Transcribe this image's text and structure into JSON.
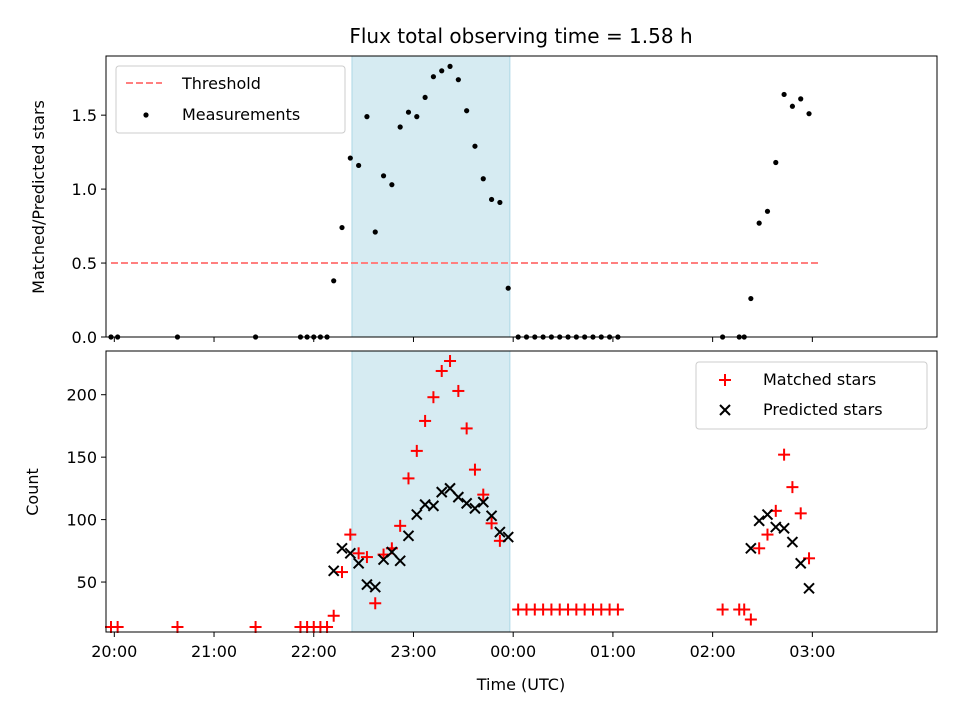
{
  "chart_data": [
    {
      "type": "scatter",
      "title": "Flux total observing time = 1.58 h",
      "xlabel": "",
      "ylabel": "Matched/Predicted stars",
      "xlim": [
        "19:55",
        "04:15"
      ],
      "ylim": [
        0,
        1.9
      ],
      "yticks": [
        "0.0",
        "0.5",
        "1.0",
        "1.5"
      ],
      "shaded_region": {
        "x_start": "22:23",
        "x_end": "23:58",
        "color": "#add8e6"
      },
      "legend": {
        "placement": "upper-left",
        "entries": [
          "Threshold",
          "Measurements"
        ]
      },
      "series": [
        {
          "name": "Threshold",
          "kind": "dashed-line",
          "color": "#ff7f7f",
          "points": [
            [
              "19:58",
              0.5
            ],
            [
              "03:04",
              0.5
            ]
          ]
        },
        {
          "name": "Measurements",
          "kind": "points",
          "color": "#000000",
          "points": [
            [
              "19:58",
              0
            ],
            [
              "20:02",
              0
            ],
            [
              "20:38",
              0
            ],
            [
              "21:25",
              0
            ],
            [
              "21:52",
              0
            ],
            [
              "21:56",
              0
            ],
            [
              "22:00",
              0
            ],
            [
              "22:04",
              0
            ],
            [
              "22:08",
              0
            ],
            [
              "22:12",
              0.38
            ],
            [
              "22:17",
              0.74
            ],
            [
              "22:22",
              1.21
            ],
            [
              "22:27",
              1.16
            ],
            [
              "22:32",
              1.49
            ],
            [
              "22:37",
              0.71
            ],
            [
              "22:42",
              1.09
            ],
            [
              "22:47",
              1.03
            ],
            [
              "22:52",
              1.42
            ],
            [
              "22:57",
              1.52
            ],
            [
              "23:02",
              1.49
            ],
            [
              "23:07",
              1.62
            ],
            [
              "23:12",
              1.76
            ],
            [
              "23:17",
              1.8
            ],
            [
              "23:22",
              1.83
            ],
            [
              "23:27",
              1.74
            ],
            [
              "23:32",
              1.53
            ],
            [
              "23:37",
              1.29
            ],
            [
              "23:42",
              1.07
            ],
            [
              "23:47",
              0.93
            ],
            [
              "23:52",
              0.91
            ],
            [
              "23:57",
              0.33
            ],
            [
              "00:03",
              0
            ],
            [
              "00:08",
              0
            ],
            [
              "00:13",
              0
            ],
            [
              "00:18",
              0
            ],
            [
              "00:23",
              0
            ],
            [
              "00:28",
              0
            ],
            [
              "00:33",
              0
            ],
            [
              "00:38",
              0
            ],
            [
              "00:43",
              0
            ],
            [
              "00:48",
              0
            ],
            [
              "00:53",
              0
            ],
            [
              "00:58",
              0
            ],
            [
              "01:03",
              0
            ],
            [
              "02:06",
              0
            ],
            [
              "02:16",
              0
            ],
            [
              "02:19",
              0
            ],
            [
              "02:23",
              0.26
            ],
            [
              "02:28",
              0.77
            ],
            [
              "02:33",
              0.85
            ],
            [
              "02:38",
              1.18
            ],
            [
              "02:43",
              1.64
            ],
            [
              "02:48",
              1.56
            ],
            [
              "02:53",
              1.61
            ],
            [
              "02:58",
              1.51
            ]
          ]
        }
      ]
    },
    {
      "type": "scatter",
      "title": "",
      "xlabel": "Time (UTC)",
      "ylabel": "Count",
      "xlim": [
        "19:55",
        "04:15"
      ],
      "ylim": [
        10,
        235
      ],
      "yticks": [
        "50",
        "100",
        "150",
        "200"
      ],
      "xticks": [
        "20:00",
        "21:00",
        "22:00",
        "23:00",
        "00:00",
        "01:00",
        "02:00",
        "03:00"
      ],
      "shaded_region": {
        "x_start": "22:23",
        "x_end": "23:58",
        "color": "#add8e6"
      },
      "legend": {
        "placement": "upper-right",
        "entries": [
          "Matched stars",
          "Predicted stars"
        ]
      },
      "series": [
        {
          "name": "Matched stars",
          "kind": "plus",
          "color": "#ff0000",
          "points": [
            [
              "19:58",
              14
            ],
            [
              "20:02",
              14
            ],
            [
              "20:38",
              14
            ],
            [
              "21:25",
              14
            ],
            [
              "21:52",
              14
            ],
            [
              "21:56",
              14
            ],
            [
              "22:00",
              14
            ],
            [
              "22:04",
              14
            ],
            [
              "22:08",
              14
            ],
            [
              "22:12",
              23
            ],
            [
              "22:17",
              58
            ],
            [
              "22:22",
              88
            ],
            [
              "22:27",
              73
            ],
            [
              "22:32",
              70
            ],
            [
              "22:37",
              33
            ],
            [
              "22:42",
              72
            ],
            [
              "22:47",
              77
            ],
            [
              "22:52",
              95
            ],
            [
              "22:57",
              133
            ],
            [
              "23:02",
              155
            ],
            [
              "23:07",
              179
            ],
            [
              "23:12",
              198
            ],
            [
              "23:17",
              219
            ],
            [
              "23:22",
              227
            ],
            [
              "23:27",
              203
            ],
            [
              "23:32",
              173
            ],
            [
              "23:37",
              140
            ],
            [
              "23:42",
              120
            ],
            [
              "23:47",
              97
            ],
            [
              "23:52",
              83
            ],
            [
              "00:03",
              28
            ],
            [
              "00:08",
              28
            ],
            [
              "00:13",
              28
            ],
            [
              "00:18",
              28
            ],
            [
              "00:23",
              28
            ],
            [
              "00:28",
              28
            ],
            [
              "00:33",
              28
            ],
            [
              "00:38",
              28
            ],
            [
              "00:43",
              28
            ],
            [
              "00:48",
              28
            ],
            [
              "00:53",
              28
            ],
            [
              "00:58",
              28
            ],
            [
              "01:03",
              28
            ],
            [
              "02:06",
              28
            ],
            [
              "02:16",
              28
            ],
            [
              "02:19",
              28
            ],
            [
              "02:23",
              20
            ],
            [
              "02:28",
              77
            ],
            [
              "02:33",
              88
            ],
            [
              "02:38",
              107
            ],
            [
              "02:43",
              152
            ],
            [
              "02:48",
              126
            ],
            [
              "02:53",
              105
            ],
            [
              "02:58",
              69
            ]
          ]
        },
        {
          "name": "Predicted stars",
          "kind": "cross",
          "color": "#000000",
          "points": [
            [
              "22:12",
              59
            ],
            [
              "22:17",
              77
            ],
            [
              "22:22",
              73
            ],
            [
              "22:27",
              65
            ],
            [
              "22:32",
              48
            ],
            [
              "22:37",
              46
            ],
            [
              "22:42",
              68
            ],
            [
              "22:47",
              74
            ],
            [
              "22:52",
              67
            ],
            [
              "22:57",
              87
            ],
            [
              "23:02",
              104
            ],
            [
              "23:07",
              112
            ],
            [
              "23:12",
              111
            ],
            [
              "23:17",
              122
            ],
            [
              "23:22",
              125
            ],
            [
              "23:27",
              118
            ],
            [
              "23:32",
              113
            ],
            [
              "23:37",
              109
            ],
            [
              "23:42",
              114
            ],
            [
              "23:47",
              103
            ],
            [
              "23:52",
              90
            ],
            [
              "23:57",
              86
            ],
            [
              "02:23",
              77
            ],
            [
              "02:28",
              99
            ],
            [
              "02:33",
              104
            ],
            [
              "02:38",
              94
            ],
            [
              "02:43",
              93
            ],
            [
              "02:48",
              82
            ],
            [
              "02:53",
              65
            ],
            [
              "02:58",
              45
            ]
          ]
        }
      ]
    }
  ]
}
